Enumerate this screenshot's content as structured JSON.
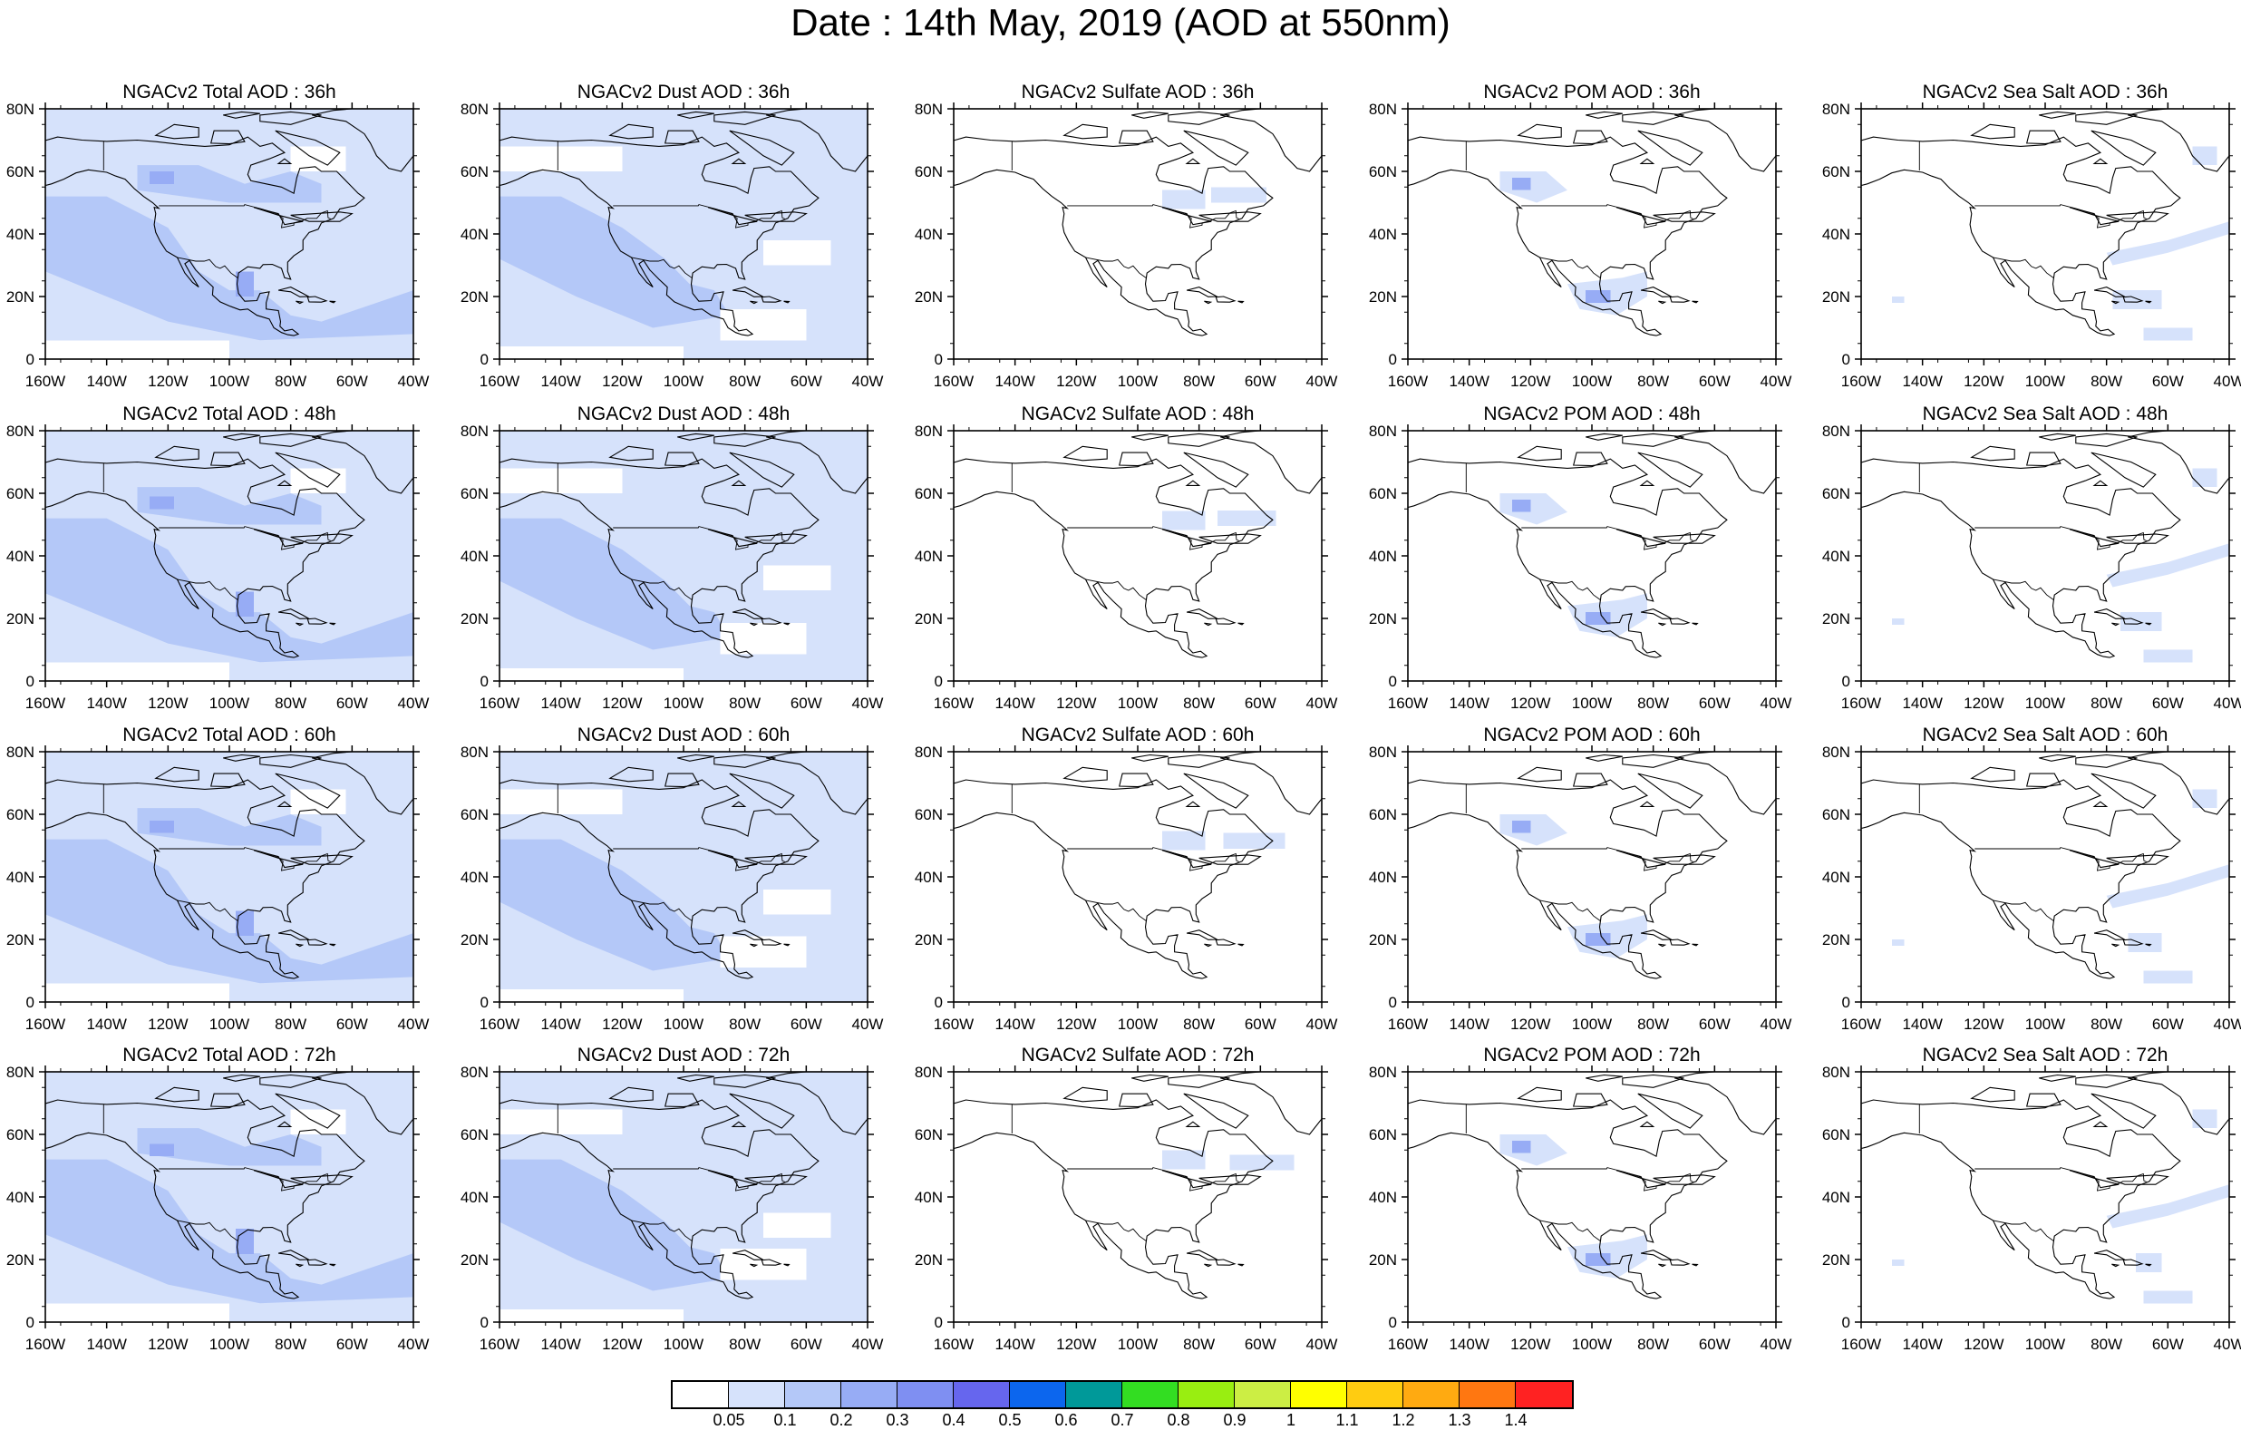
{
  "title": "Date : 14th May, 2019 (AOD at 550nm)",
  "axes": {
    "lon_ticks": [
      "160W",
      "140W",
      "120W",
      "100W",
      "80W",
      "60W",
      "40W"
    ],
    "lat_ticks": [
      "0",
      "20N",
      "40N",
      "60N",
      "80N"
    ],
    "lon_range": [
      -160,
      -40
    ],
    "lat_range": [
      0,
      80
    ]
  },
  "panels": [
    [
      "NGACv2 Total AOD : 36h",
      "NGACv2 Dust AOD : 36h",
      "NGACv2 Sulfate AOD : 36h",
      "NGACv2 POM AOD : 36h",
      "NGACv2 Sea Salt AOD : 36h"
    ],
    [
      "NGACv2 Total AOD : 48h",
      "NGACv2 Dust AOD : 48h",
      "NGACv2 Sulfate AOD : 48h",
      "NGACv2 POM AOD : 48h",
      "NGACv2 Sea Salt AOD : 48h"
    ],
    [
      "NGACv2 Total AOD : 60h",
      "NGACv2 Dust AOD : 60h",
      "NGACv2 Sulfate AOD : 60h",
      "NGACv2 POM AOD : 60h",
      "NGACv2 Sea Salt AOD : 60h"
    ],
    [
      "NGACv2 Total AOD : 72h",
      "NGACv2 Dust AOD : 72h",
      "NGACv2 Sulfate AOD : 72h",
      "NGACv2 POM AOD : 72h",
      "NGACv2 Sea Salt  AOD : 72h"
    ]
  ],
  "colorbar": {
    "levels": [
      "0.05",
      "0.1",
      "0.2",
      "0.3",
      "0.4",
      "0.5",
      "0.6",
      "0.7",
      "0.8",
      "0.9",
      "1",
      "1.1",
      "1.2",
      "1.3",
      "1.4"
    ],
    "colors": [
      "#ffffff",
      "#d6e2fb",
      "#b4c8f8",
      "#97acf5",
      "#7f8ff2",
      "#6666ee",
      "#0c66ee",
      "#009999",
      "#33dd22",
      "#99ee11",
      "#ccee44",
      "#ffff00",
      "#ffcc11",
      "#ffaa11",
      "#ff7711",
      "#ff2222"
    ]
  }
}
